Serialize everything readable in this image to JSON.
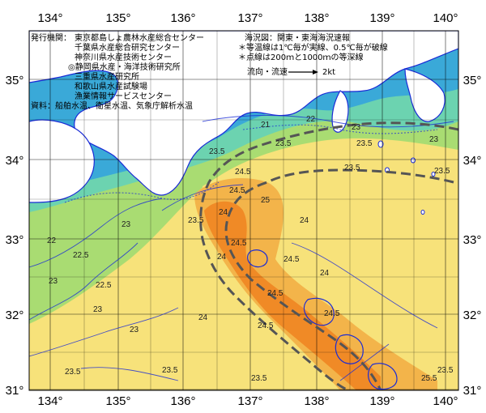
{
  "map": {
    "lon_labels": [
      "134°",
      "135°",
      "136°",
      "137°",
      "138°",
      "139°",
      "140°"
    ],
    "lat_labels": [
      "35°",
      "34°",
      "33°",
      "32°",
      "31°"
    ],
    "publishers_title": "発行機関：",
    "publishers": [
      "東京都島しょ農林水産総合センター",
      "千葉県水産総合研究センター",
      "神奈川県水産技術センター",
      "◎静岡県水産・海洋技術研究所",
      "三重県水産研究所",
      "和歌山県水産試験場",
      "漁業情報サービスセンター"
    ],
    "source": "資料：船舶水温、衛星水温、気象庁解析水温",
    "area_note": "海況図：関東・東海海況速報",
    "notes": [
      "＊等温線は1℃毎が実線、0.5℃毎が破線",
      "＊点線は200ｍと1000ｍの等深線"
    ],
    "legend_label": "流向・流速",
    "legend_scale": "2kt",
    "iso_labels": [
      "21",
      "22",
      "23",
      "23",
      "23.5",
      "23.5",
      "23.5",
      "23.5",
      "23.5",
      "23.5",
      "23.5",
      "23.5",
      "24",
      "24",
      "24",
      "24",
      "24.5",
      "24.5",
      "24.5",
      "24.5",
      "24.5",
      "24.5",
      "24.5",
      "25",
      "25.5",
      "23",
      "23",
      "23",
      "22",
      "22.5",
      "23",
      "22.5",
      "23.5",
      "24",
      "23.5"
    ],
    "colors": {
      "land": "#ffffff",
      "sea_cold": "#3aa9d8",
      "sea_cool": "#6cd3b0",
      "sea_mid": "#a9dc72",
      "sea_warm": "#f7e27a",
      "sea_hot": "#f3b44a",
      "sea_hottest": "#f08a26",
      "coast_line": "#1a2bd6",
      "grid": "#000000",
      "kuroshio_axis": "#555555"
    }
  }
}
